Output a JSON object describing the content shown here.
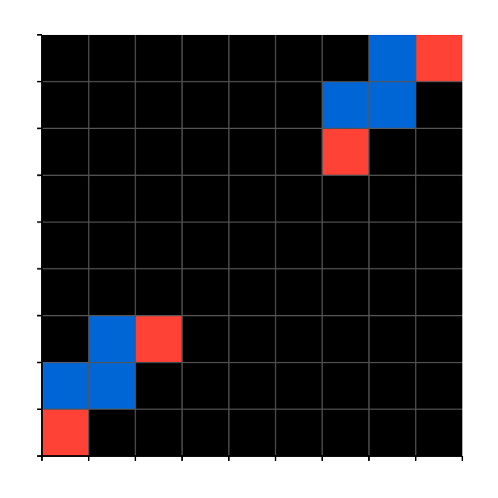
{
  "board": {
    "rows": 9,
    "cols": 9,
    "background_color": "#000000",
    "grid_line_color": "#555555",
    "axis_color": "#000000",
    "colors": {
      "blue": "#0066d6",
      "red": "#ff4136"
    },
    "cells": [
      {
        "row": 0,
        "col": 7,
        "color": "blue"
      },
      {
        "row": 0,
        "col": 8,
        "color": "red"
      },
      {
        "row": 1,
        "col": 6,
        "color": "blue"
      },
      {
        "row": 1,
        "col": 7,
        "color": "blue"
      },
      {
        "row": 2,
        "col": 6,
        "color": "red"
      },
      {
        "row": 6,
        "col": 1,
        "color": "blue"
      },
      {
        "row": 6,
        "col": 2,
        "color": "red"
      },
      {
        "row": 7,
        "col": 0,
        "color": "blue"
      },
      {
        "row": 7,
        "col": 1,
        "color": "blue"
      },
      {
        "row": 8,
        "col": 0,
        "color": "red"
      }
    ]
  }
}
